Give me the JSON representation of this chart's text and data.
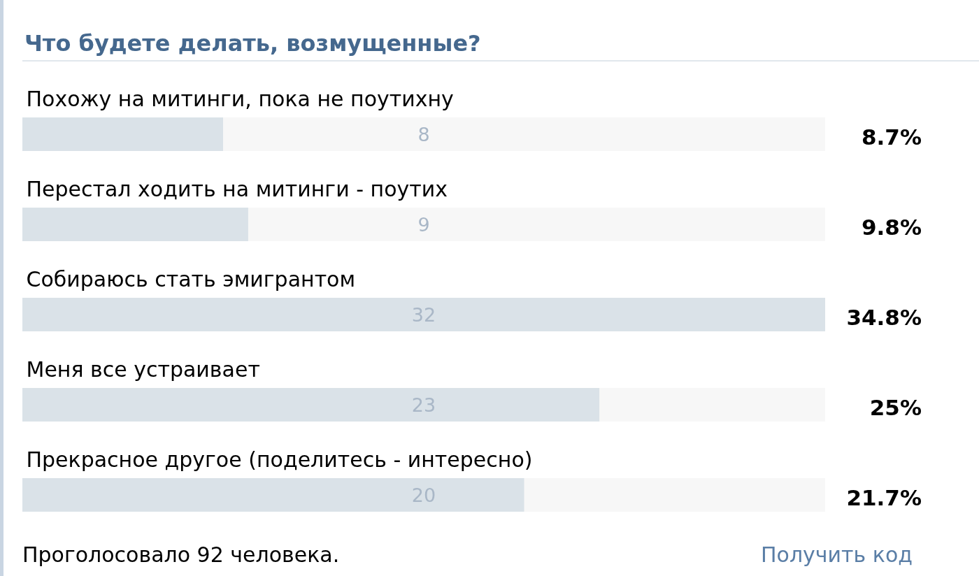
{
  "chart_data": {
    "type": "bar",
    "orientation": "horizontal",
    "title": "Что будете делать, возмущенные?",
    "categories": [
      "Похожу на митинги, пока не поутихну",
      "Перестал ходить на митинги - поутих",
      "Собираюсь стать эмигрантом",
      "Меня все устраивает",
      "Прекрасное другое (поделитесь - интересно)"
    ],
    "values": [
      8,
      9,
      32,
      23,
      20
    ],
    "color": "#dae2e8",
    "xlim": [
      0,
      32
    ],
    "data_labels": true,
    "tick_labels": "y",
    "annotations": [
      "8.7%",
      "9.8%",
      "34.8%",
      "25%",
      "21.7%",
      "Проголосовало 92 человека.",
      "Получить код"
    ]
  }
}
